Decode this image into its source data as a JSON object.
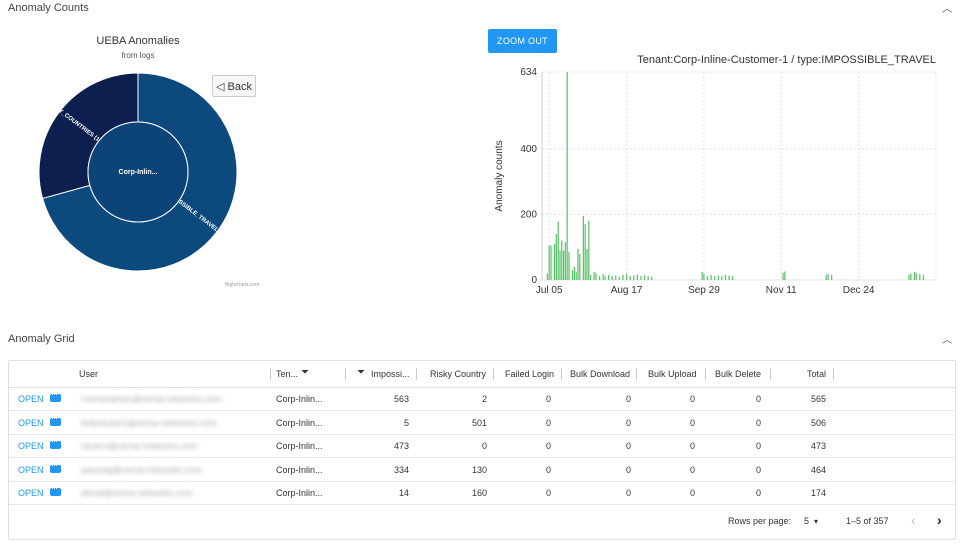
{
  "anomaly_counts": {
    "title": "Anomaly Counts"
  },
  "anomaly_grid": {
    "title": "Anomaly Grid"
  },
  "sunburst": {
    "title": "UEBA Anomalies",
    "subtitle": "from logs",
    "center_label": "Corp-Inlin...",
    "back_label": "◁ Back",
    "credit": "Highcharts.com"
  },
  "zoom_label": "ZOOM OUT",
  "colors": {
    "accent": "#2196f3",
    "bar": "#5cc46a",
    "outer_dark": "#0d1f4e",
    "outer_blue": "#0c4a7e",
    "inner": "#0d4477"
  },
  "chart_data": [
    {
      "type": "pie",
      "title": "UEBA Anomalies",
      "subtitle": "from logs",
      "center": "Corp-Inlin...",
      "slices": [
        {
          "label": "IMPOSSIBLE_TRAVEL (3542)",
          "value": 3542
        },
        {
          "label": "RISKY_COUNTRIES (1468)",
          "value": 1468
        }
      ]
    },
    {
      "type": "bar",
      "title": "Tenant:Corp-Inline-Customer-1 / type:IMPOSSIBLE_TRAVEL",
      "ylabel": "Anomaly counts",
      "ylim": [
        0,
        634
      ],
      "yticks": [
        0,
        200,
        400,
        634
      ],
      "xticks": [
        "Jul 05",
        "Aug 17",
        "Sep 29",
        "Nov 11",
        "Dec 24"
      ],
      "x_start": "2021-07-01",
      "bars": [
        [
          "2021-07-04",
          20
        ],
        [
          "2021-07-05",
          105
        ],
        [
          "2021-07-06",
          105
        ],
        [
          "2021-07-08",
          110
        ],
        [
          "2021-07-09",
          140
        ],
        [
          "2021-07-10",
          178
        ],
        [
          "2021-07-11",
          90
        ],
        [
          "2021-07-12",
          120
        ],
        [
          "2021-07-13",
          90
        ],
        [
          "2021-07-14",
          115
        ],
        [
          "2021-07-15",
          634
        ],
        [
          "2021-07-16",
          85
        ],
        [
          "2021-07-18",
          30
        ],
        [
          "2021-07-19",
          40
        ],
        [
          "2021-07-20",
          25
        ],
        [
          "2021-07-21",
          95
        ],
        [
          "2021-07-22",
          80
        ],
        [
          "2021-07-24",
          195
        ],
        [
          "2021-07-25",
          170
        ],
        [
          "2021-07-26",
          95
        ],
        [
          "2021-07-27",
          180
        ],
        [
          "2021-07-28",
          15
        ],
        [
          "2021-07-30",
          25
        ],
        [
          "2021-07-31",
          20
        ],
        [
          "2021-08-02",
          12
        ],
        [
          "2021-08-04",
          18
        ],
        [
          "2021-08-05",
          12
        ],
        [
          "2021-08-07",
          16
        ],
        [
          "2021-08-09",
          12
        ],
        [
          "2021-08-11",
          14
        ],
        [
          "2021-08-13",
          10
        ],
        [
          "2021-08-15",
          15
        ],
        [
          "2021-08-17",
          18
        ],
        [
          "2021-08-19",
          12
        ],
        [
          "2021-08-21",
          14
        ],
        [
          "2021-08-23",
          16
        ],
        [
          "2021-08-25",
          12
        ],
        [
          "2021-08-27",
          15
        ],
        [
          "2021-08-29",
          12
        ],
        [
          "2021-08-31",
          10
        ],
        [
          "2021-09-28",
          25
        ],
        [
          "2021-09-29",
          18
        ],
        [
          "2021-10-01",
          12
        ],
        [
          "2021-10-03",
          15
        ],
        [
          "2021-10-05",
          12
        ],
        [
          "2021-10-07",
          14
        ],
        [
          "2021-10-09",
          12
        ],
        [
          "2021-10-11",
          16
        ],
        [
          "2021-10-13",
          14
        ],
        [
          "2021-10-15",
          12
        ],
        [
          "2021-11-12",
          22
        ],
        [
          "2021-11-13",
          26
        ],
        [
          "2021-12-06",
          15
        ],
        [
          "2021-12-07",
          18
        ],
        [
          "2021-12-09",
          16
        ],
        [
          "2022-01-21",
          15
        ],
        [
          "2022-01-22",
          20
        ],
        [
          "2022-01-24",
          25
        ],
        [
          "2022-01-25",
          22
        ],
        [
          "2022-01-27",
          18
        ],
        [
          "2022-01-29",
          16
        ]
      ]
    }
  ],
  "grid": {
    "headers": {
      "user": "User",
      "tenant": "Ten...",
      "impossible": "Impossi...",
      "risky": "Risky Country",
      "failed": "Failed Login",
      "bulk_download": "Bulk Download",
      "bulk_upload": "Bulk Upload",
      "bulk_delete": "Bulk Delete",
      "total": "Total"
    },
    "rows": [
      {
        "action": "OPEN",
        "user": "rramanathan@versa-networks.com",
        "tenant": "Corp-Inlin...",
        "impossible": "563",
        "risky": "2",
        "failed": "0",
        "bulk_download": "0",
        "bulk_upload": "0",
        "bulk_delete": "0",
        "total": "565"
      },
      {
        "action": "OPEN",
        "user": "kritestuser1@versa-networks.com",
        "tenant": "Corp-Inlin...",
        "impossible": "5",
        "risky": "501",
        "failed": "0",
        "bulk_download": "0",
        "bulk_upload": "0",
        "bulk_delete": "0",
        "total": "506"
      },
      {
        "action": "OPEN",
        "user": "ravanv@versa-networks.com",
        "tenant": "Corp-Inlin...",
        "impossible": "473",
        "risky": "0",
        "failed": "0",
        "bulk_download": "0",
        "bulk_upload": "0",
        "bulk_delete": "0",
        "total": "473"
      },
      {
        "action": "OPEN",
        "user": "pavanig@versa-networks.com",
        "tenant": "Corp-Inlin...",
        "impossible": "334",
        "risky": "130",
        "failed": "0",
        "bulk_download": "0",
        "bulk_upload": "0",
        "bulk_delete": "0",
        "total": "464"
      },
      {
        "action": "OPEN",
        "user": "dinrai@versa-networks.com",
        "tenant": "Corp-Inlin...",
        "impossible": "14",
        "risky": "160",
        "failed": "0",
        "bulk_download": "0",
        "bulk_upload": "0",
        "bulk_delete": "0",
        "total": "174"
      }
    ],
    "footer": {
      "rows_per_page_label": "Rows per page:",
      "rows_per_page_value": "5",
      "range": "1–5 of 357"
    }
  }
}
